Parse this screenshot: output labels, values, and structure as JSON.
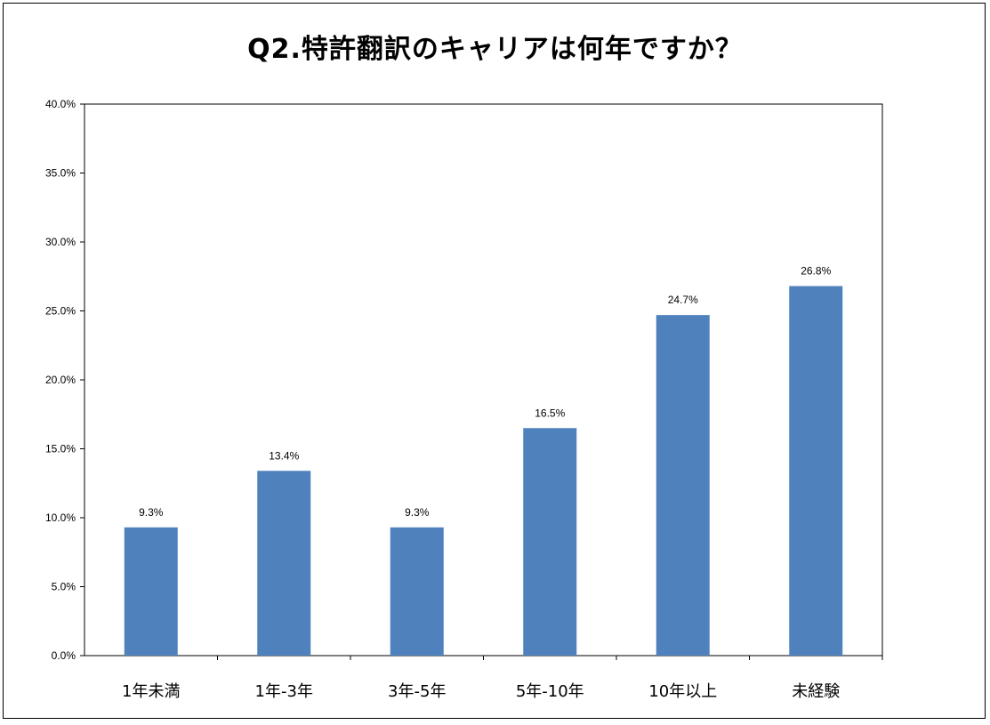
{
  "chart_data": {
    "type": "bar",
    "title": "Q2.特許翻訳のキャリアは何年ですか？",
    "categories": [
      "1年未満",
      "1年-3年",
      "3年-5年",
      "5年-10年",
      "10年以上",
      "未経験"
    ],
    "values": [
      9.3,
      13.4,
      9.3,
      16.5,
      24.7,
      26.8
    ],
    "data_labels": [
      "9.3%",
      "13.4%",
      "9.3%",
      "16.5%",
      "24.7%",
      "26.8%"
    ],
    "yticks": [
      "0.0%",
      "5.0%",
      "10.0%",
      "15.0%",
      "20.0%",
      "25.0%",
      "30.0%",
      "35.0%",
      "40.0%"
    ],
    "ylim": [
      0,
      40
    ],
    "xlabel": "",
    "ylabel": "",
    "grid": false,
    "legend": "none",
    "bar_color": "#4f81bd"
  }
}
